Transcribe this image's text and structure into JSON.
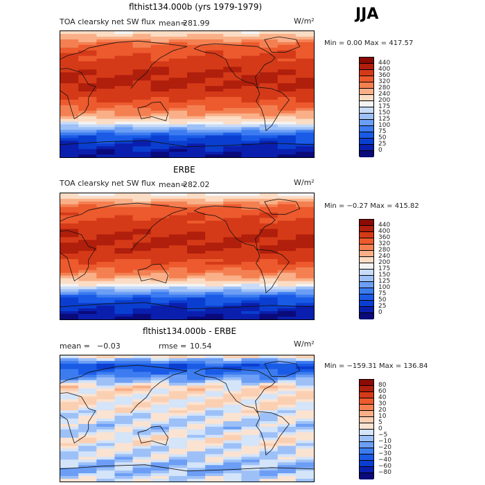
{
  "season": "JJA",
  "panels": [
    {
      "id": "model",
      "title": "flthist134.000b (yrs 1979-1979)",
      "left_label": "TOA clearsky net SW flux",
      "stat_label": "mean=",
      "stat_value": "281.99",
      "stat2_label": "",
      "stat2_value": "",
      "units": "W/m²",
      "minmax": "Min =    0.00 Max = 417.57"
    },
    {
      "id": "obs",
      "title": "ERBE",
      "left_label": "TOA clearsky net SW flux",
      "stat_label": "mean=",
      "stat_value": "282.02",
      "stat2_label": "",
      "stat2_value": "",
      "units": "W/m²",
      "minmax": "Min =  −0.27 Max = 415.82"
    },
    {
      "id": "diff",
      "title": "flthist134.000b - ERBE",
      "left_label": "mean =",
      "stat_label": "",
      "stat_value": "−0.03",
      "stat2_label": "rmse =",
      "stat2_value": "10.54",
      "units": "W/m²",
      "minmax": "Min = −159.31 Max = 136.84"
    }
  ],
  "chart_data": [
    {
      "type": "heatmap",
      "title": "flthist134.000b (yrs 1979-1979)",
      "variable": "TOA clearsky net SW flux",
      "units": "W/m²",
      "mean": 281.99,
      "min": 0.0,
      "max": 417.57,
      "colorbar_levels": [
        0,
        25,
        50,
        75,
        100,
        125,
        150,
        175,
        200,
        240,
        280,
        320,
        360,
        400,
        440
      ],
      "colorbar_colors": [
        "#0a0a7a",
        "#0a1fae",
        "#0a3ed0",
        "#1a5be6",
        "#3c7cf0",
        "#6c9ef5",
        "#9dc0f7",
        "#c8dcf9",
        "#f3f3f3",
        "#fbdcc4",
        "#f9b088",
        "#f48052",
        "#ec5a2e",
        "#d53a18",
        "#b01e0c",
        "#8a0a04"
      ],
      "lat_profile": [
        [
          90,
          200
        ],
        [
          70,
          330
        ],
        [
          50,
          370
        ],
        [
          30,
          400
        ],
        [
          15,
          410
        ],
        [
          0,
          380
        ],
        [
          -15,
          340
        ],
        [
          -30,
          270
        ],
        [
          -45,
          160
        ],
        [
          -60,
          60
        ],
        [
          -75,
          20
        ],
        [
          -90,
          0
        ]
      ]
    },
    {
      "type": "heatmap",
      "title": "ERBE",
      "variable": "TOA clearsky net SW flux",
      "units": "W/m²",
      "mean": 282.02,
      "min": -0.27,
      "max": 415.82,
      "colorbar_levels": [
        0,
        25,
        50,
        75,
        100,
        125,
        150,
        175,
        200,
        240,
        280,
        320,
        360,
        400,
        440
      ],
      "colorbar_colors": [
        "#0a0a7a",
        "#0a1fae",
        "#0a3ed0",
        "#1a5be6",
        "#3c7cf0",
        "#6c9ef5",
        "#9dc0f7",
        "#c8dcf9",
        "#f3f3f3",
        "#fbdcc4",
        "#f9b088",
        "#f48052",
        "#ec5a2e",
        "#d53a18",
        "#b01e0c",
        "#8a0a04"
      ],
      "lat_profile": [
        [
          90,
          180
        ],
        [
          70,
          330
        ],
        [
          50,
          370
        ],
        [
          30,
          400
        ],
        [
          15,
          410
        ],
        [
          0,
          380
        ],
        [
          -15,
          340
        ],
        [
          -30,
          270
        ],
        [
          -45,
          160
        ],
        [
          -60,
          60
        ],
        [
          -75,
          20
        ],
        [
          -90,
          0
        ]
      ]
    },
    {
      "type": "heatmap",
      "title": "flthist134.000b - ERBE",
      "units": "W/m²",
      "mean": -0.03,
      "rmse": 10.54,
      "min": -159.31,
      "max": 136.84,
      "colorbar_levels": [
        -80,
        -60,
        -40,
        -30,
        -20,
        -10,
        -5,
        0,
        5,
        10,
        20,
        30,
        40,
        60,
        80
      ],
      "colorbar_colors": [
        "#0a0a7a",
        "#0a1fae",
        "#0a3ed0",
        "#1a5be6",
        "#3c7cf0",
        "#6c9ef5",
        "#9dc0f7",
        "#d4e4f9",
        "#fbe3d2",
        "#fbcfb2",
        "#f9b088",
        "#f48052",
        "#ec5a2e",
        "#d53a18",
        "#b01e0c",
        "#8a0a04"
      ],
      "lat_profile": [
        [
          90,
          10
        ],
        [
          75,
          -40
        ],
        [
          60,
          -20
        ],
        [
          45,
          5
        ],
        [
          30,
          3
        ],
        [
          15,
          2
        ],
        [
          0,
          -3
        ],
        [
          -15,
          -5
        ],
        [
          -30,
          2
        ],
        [
          -45,
          -2
        ],
        [
          -60,
          -5
        ],
        [
          -75,
          -10
        ],
        [
          -90,
          0
        ]
      ]
    }
  ]
}
